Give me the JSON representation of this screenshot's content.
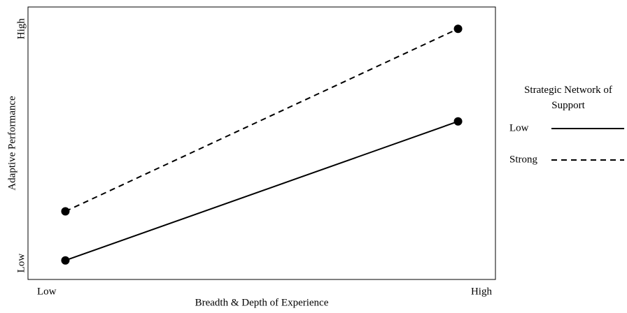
{
  "chart_data": {
    "type": "line",
    "x_label": "Breadth & Depth of Experience",
    "y_label": "Adaptive Performance",
    "xlim": [
      0,
      100
    ],
    "ylim": [
      0,
      100
    ],
    "xticks": [
      {
        "value": 4,
        "label": "Low"
      },
      {
        "value": 97,
        "label": "High"
      }
    ],
    "yticks": [
      {
        "value": 6,
        "label": "Low"
      },
      {
        "value": 92,
        "label": "High"
      }
    ],
    "x": [
      8,
      92
    ],
    "legend_title": "Strategic Network of Support",
    "legend_position": "right",
    "series": [
      {
        "name": "Low",
        "color": "#000000",
        "style": "solid",
        "values": [
          7,
          58
        ]
      },
      {
        "name": "Strong",
        "color": "#000000",
        "style": "dashed",
        "values": [
          25,
          92
        ]
      }
    ]
  }
}
